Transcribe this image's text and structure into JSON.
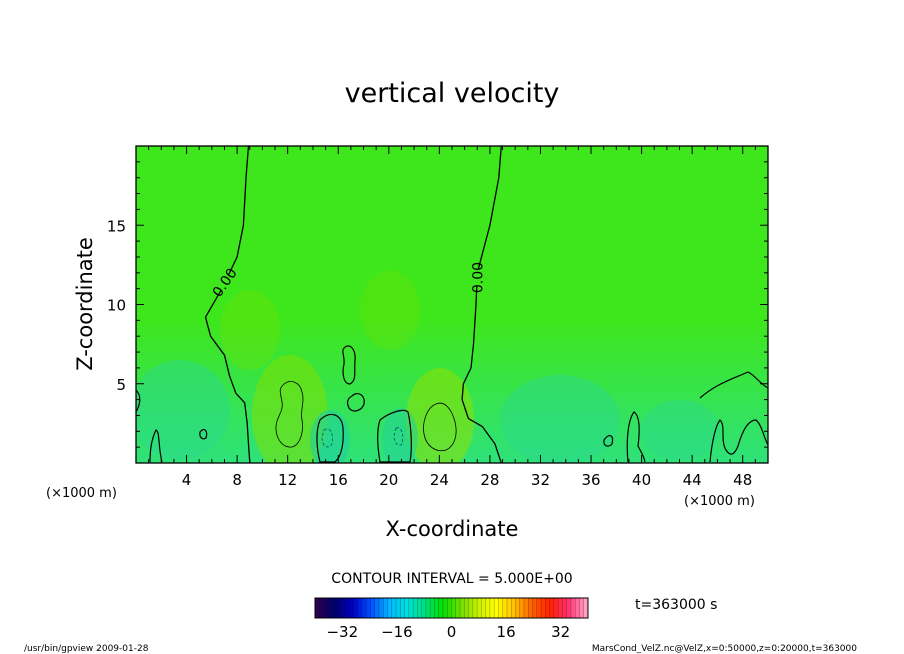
{
  "chart_data": {
    "type": "contour",
    "title": "vertical velocity",
    "xlabel": "X-coordinate",
    "ylabel": "Z-coordinate",
    "x_unit_left": "(×1000 m)",
    "x_unit_right": "(×1000 m)",
    "xlim": [
      0,
      50
    ],
    "ylim": [
      0,
      20
    ],
    "x_ticks": [
      4,
      8,
      12,
      16,
      20,
      24,
      28,
      32,
      36,
      40,
      44,
      48
    ],
    "y_ticks": [
      5,
      10,
      15
    ],
    "contour_interval_text": "CONTOUR INTERVAL = 5.000E+00",
    "contour_labels": [
      {
        "text": "0.00",
        "x": 7.0,
        "z": 11.4
      },
      {
        "text": "0.00",
        "x": 27.0,
        "z": 11.7
      }
    ],
    "zero_contours": [
      [
        [
          8.9,
          20
        ],
        [
          8.7,
          18
        ],
        [
          8.5,
          15
        ],
        [
          8.0,
          13
        ],
        [
          6.8,
          11
        ],
        [
          5.5,
          9.2
        ],
        [
          5.9,
          8.0
        ],
        [
          7.0,
          6.8
        ],
        [
          7.4,
          5.5
        ],
        [
          7.9,
          4.4
        ],
        [
          8.6,
          3.8
        ],
        [
          8.8,
          2.5
        ],
        [
          8.9,
          1.2
        ],
        [
          9.0,
          0
        ]
      ],
      [
        [
          28.9,
          20
        ],
        [
          28.7,
          18
        ],
        [
          28.0,
          15
        ],
        [
          27.0,
          12
        ],
        [
          26.9,
          10
        ],
        [
          26.7,
          7.5
        ],
        [
          26.5,
          6.0
        ],
        [
          25.9,
          5.0
        ],
        [
          25.8,
          4.0
        ],
        [
          26.3,
          2.8
        ],
        [
          27.4,
          2.3
        ],
        [
          28.4,
          1.2
        ],
        [
          28.9,
          0
        ]
      ]
    ],
    "colorbar": {
      "ticks": [
        -32,
        -16,
        0,
        16,
        32
      ],
      "range": [
        -40,
        40
      ],
      "colors": [
        "#2b0050",
        "#00006a",
        "#0000c8",
        "#0050ff",
        "#00b4ff",
        "#00e0e0",
        "#00e080",
        "#00e000",
        "#6ee000",
        "#c8f000",
        "#ffff00",
        "#ffc000",
        "#ff6000",
        "#ff2000",
        "#ff3070",
        "#ffa0c0"
      ]
    },
    "time_text": "t=363000 s",
    "footer_left": "/usr/bin/gpview   2009-01-28",
    "footer_right": "MarsCond_VelZ.nc@VelZ,x=0:50000,z=0:20000,t=363000"
  }
}
